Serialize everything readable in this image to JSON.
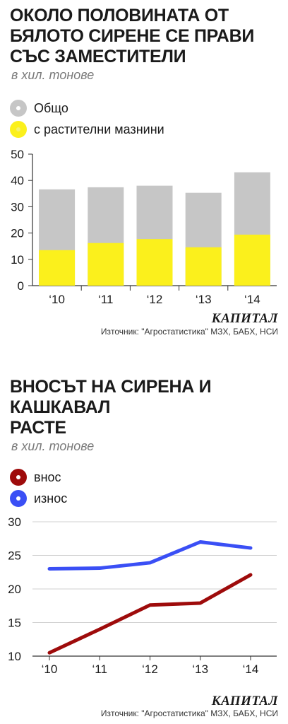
{
  "colors": {
    "total": "#c6c6c6",
    "veg_fat": "#fbf01c",
    "imports": "#9e0b0b",
    "exports": "#3a4ff5"
  },
  "chart1": {
    "title_lines": [
      "Около половината от",
      "бялото сирене се прави",
      "със заместители"
    ],
    "subtitle": "в хил. тонове",
    "brand": "КАПИТАЛ",
    "source": "Източник: \"Агростатистика\" МЗХ, БАБХ, НСИ"
  },
  "chart2": {
    "title_lines": [
      "Вносът на сирена и",
      "кашкавал",
      "расте"
    ],
    "subtitle": "в хил. тонове",
    "brand": "КАПИТАЛ",
    "source": "Източник: \"Агростатистика\" МЗХ, БАБХ, НСИ"
  },
  "chart_data": [
    {
      "type": "bar",
      "categories": [
        "‘10",
        "‘11",
        "‘12",
        "‘13",
        "‘14"
      ],
      "series": [
        {
          "name": "Общо",
          "values": [
            36.6,
            37.4,
            38.0,
            35.3,
            43.1
          ]
        },
        {
          "name": "с растителни мазнини",
          "values": [
            13.5,
            16.2,
            17.7,
            14.6,
            19.4
          ]
        }
      ],
      "ylim": [
        0,
        50
      ],
      "yticks": [
        0,
        10,
        20,
        30,
        40,
        50
      ],
      "grid": false,
      "legend": "top-left"
    },
    {
      "type": "line",
      "categories": [
        "‘10",
        "‘11",
        "‘12",
        "‘13",
        "‘14"
      ],
      "series": [
        {
          "name": "внос",
          "values": [
            10.5,
            14.0,
            17.6,
            17.9,
            22.1
          ]
        },
        {
          "name": "износ",
          "values": [
            23.0,
            23.1,
            23.9,
            27.0,
            26.1
          ]
        }
      ],
      "ylim": [
        10,
        30
      ],
      "yticks": [
        10,
        15,
        20,
        25,
        30
      ],
      "grid": true,
      "legend": "top-left"
    }
  ]
}
